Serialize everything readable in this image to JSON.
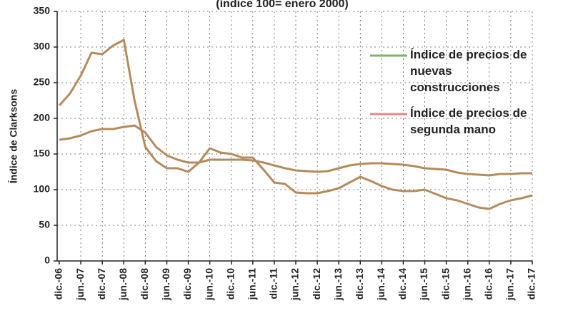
{
  "chart_data": {
    "type": "line",
    "title": "(índice 100= enero 2000)",
    "y_label": "Índice de Clarksons",
    "categories": [
      "dic.-06",
      null,
      "jun.-07",
      null,
      "dic.-07",
      null,
      "jun.-08",
      null,
      "dic.-08",
      null,
      "jun.-09",
      null,
      "dic.-09",
      null,
      "jun.-10",
      null,
      "dic.-10",
      null,
      "jun.-11",
      null,
      "dic.-11",
      null,
      "jun.-12",
      null,
      "dic.-12",
      null,
      "jun.-13",
      null,
      "dic.-13",
      null,
      "jun.-14",
      null,
      "dic.-14",
      null,
      "jun.-15",
      null,
      "dic.-15",
      null,
      "jun.-16",
      null,
      "dic.-16",
      null,
      "jun.-17",
      null,
      "dic.-17"
    ],
    "series": [
      {
        "name": "Índice de precios de nuevas construcciones",
        "color": "#b58b5c",
        "legend_color": "#7fb36a",
        "values": [
          170,
          172,
          176,
          182,
          185,
          185,
          188,
          190,
          180,
          160,
          148,
          142,
          138,
          138,
          142,
          142,
          142,
          142,
          141,
          138,
          134,
          130,
          127,
          126,
          125,
          126,
          130,
          134,
          136,
          137,
          137,
          136,
          135,
          133,
          130,
          129,
          128,
          124,
          122,
          121,
          120,
          122,
          122,
          123,
          123
        ]
      },
      {
        "name": "Índice de precios de segunda mano",
        "color": "#b58b5c",
        "legend_color": "#e08a86",
        "values": [
          218,
          235,
          260,
          292,
          290,
          302,
          310,
          225,
          160,
          140,
          130,
          130,
          125,
          138,
          158,
          152,
          150,
          145,
          145,
          128,
          110,
          108,
          96,
          95,
          95,
          98,
          102,
          110,
          118,
          112,
          105,
          100,
          98,
          98,
          100,
          94,
          88,
          85,
          80,
          75,
          73,
          80,
          85,
          88,
          92
        ]
      }
    ],
    "ylim": [
      0,
      350
    ],
    "yticks": [
      0,
      50,
      100,
      150,
      200,
      250,
      300,
      350
    ],
    "grid": true,
    "legend": "right"
  }
}
